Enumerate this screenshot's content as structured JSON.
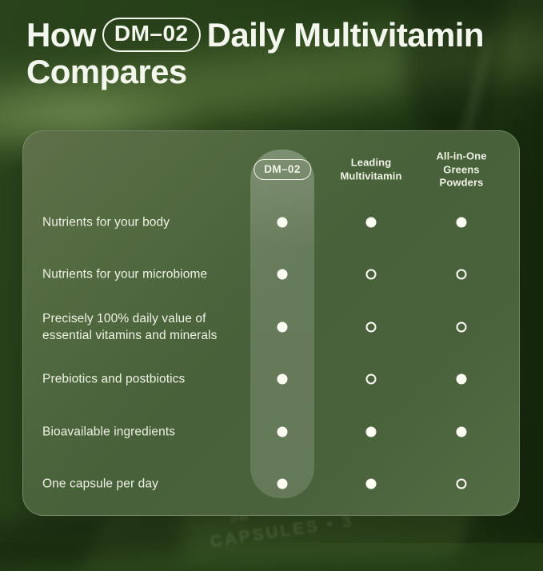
{
  "title": {
    "prefix": "How",
    "badge": "DM–02",
    "rest": "Daily Multivitamin",
    "line2": "Compares"
  },
  "table": {
    "columns": [
      {
        "id": "dm02",
        "label": "DM–02"
      },
      {
        "id": "leading",
        "label": "Leading\nMultivitamin"
      },
      {
        "id": "greens",
        "label": "All-in-One\nGreens Powders"
      }
    ],
    "rows": [
      {
        "label": "Nutrients for your body",
        "dm02": "filled",
        "leading": "filled",
        "greens": "filled"
      },
      {
        "label": "Nutrients for your microbiome",
        "dm02": "filled",
        "leading": "hollow",
        "greens": "hollow"
      },
      {
        "label": "Precisely 100% daily value of essential vitamins and minerals",
        "dm02": "filled",
        "leading": "hollow",
        "greens": "hollow"
      },
      {
        "label": "Prebiotics and postbiotics",
        "dm02": "filled",
        "leading": "hollow",
        "greens": "filled"
      },
      {
        "label": "Bioavailable ingredients",
        "dm02": "filled",
        "leading": "filled",
        "greens": "filled"
      },
      {
        "label": "One capsule per day",
        "dm02": "filled",
        "leading": "filled",
        "greens": "hollow"
      }
    ]
  },
  "background": {
    "jar_text_1": "DM",
    "jar_text_2": "CAPSULES • 3"
  },
  "colors": {
    "background_green": "#243d16",
    "card_green": "#4f6741",
    "highlight_column": "#7a8c64",
    "text": "#f2f6e9",
    "dot": "#fdfff4"
  },
  "chart_data": {
    "type": "table",
    "title": "How DM–02 Daily Multivitamin Compares",
    "columns": [
      "DM–02",
      "Leading Multivitamin",
      "All-in-One Greens Powders"
    ],
    "rows": [
      "Nutrients for your body",
      "Nutrients for your microbiome",
      "Precisely 100% daily value of essential vitamins and minerals",
      "Prebiotics and postbiotics",
      "Bioavailable ingredients",
      "One capsule per day"
    ],
    "values": [
      [
        true,
        true,
        true
      ],
      [
        true,
        false,
        false
      ],
      [
        true,
        false,
        false
      ],
      [
        true,
        false,
        true
      ],
      [
        true,
        true,
        true
      ],
      [
        true,
        true,
        false
      ]
    ],
    "marker_legend": {
      "true": "filled dot",
      "false": "hollow dot"
    },
    "highlighted_column": "DM–02"
  }
}
